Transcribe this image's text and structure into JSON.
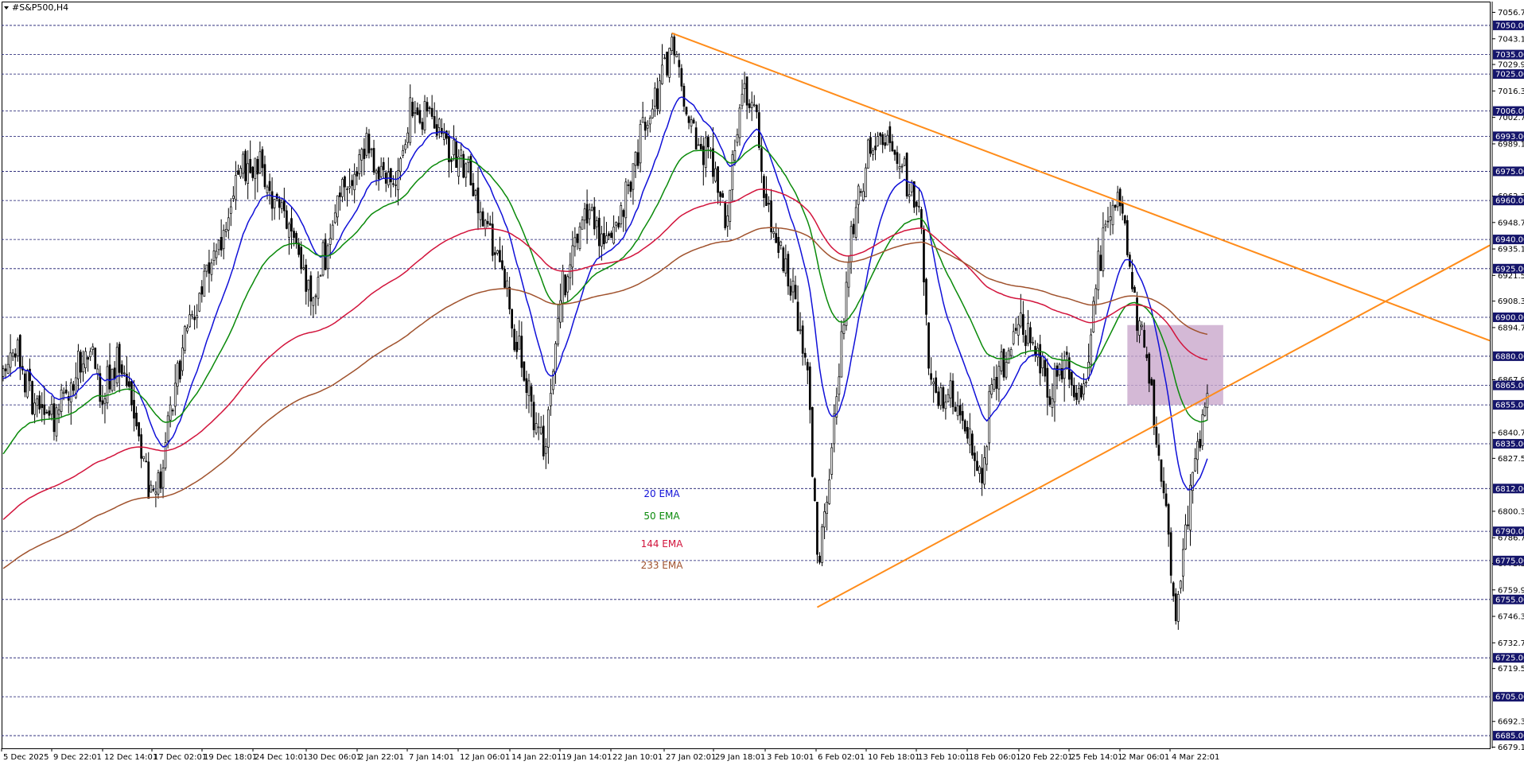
{
  "window": {
    "title": "#S&P500,H4"
  },
  "chart_data": {
    "type": "candlestick",
    "symbol": "#S&P500",
    "timeframe": "H4",
    "title": "#S&P500,H4",
    "ylim": [
      6679.11,
      7056.71
    ],
    "y_ticks": [
      "7056.71",
      "7043.11",
      "7029.91",
      "7016.31",
      "7002.71",
      "6989.11",
      "6962.31",
      "6948.71",
      "6935.11",
      "6921.51",
      "6908.31",
      "6894.71",
      "6867.91",
      "6840.71",
      "6827.51",
      "6800.31",
      "6786.71",
      "6773.51",
      "6759.91",
      "6746.31",
      "6732.71",
      "6719.51",
      "6692.31",
      "6679.11"
    ],
    "y_tick_values": [
      7056.71,
      7043.11,
      7029.91,
      7016.31,
      7002.71,
      6989.11,
      6962.31,
      6948.71,
      6935.11,
      6921.51,
      6908.31,
      6894.71,
      6867.91,
      6840.71,
      6827.51,
      6800.31,
      6786.71,
      6773.51,
      6759.91,
      6746.31,
      6732.71,
      6719.51,
      6692.31,
      6679.11
    ],
    "levels": [
      "7050.00",
      "7035.00",
      "7025.00",
      "7006.00",
      "6993.00",
      "6975.00",
      "6960.00",
      "6940.00",
      "6925.00",
      "6900.00",
      "6880.00",
      "6865.00",
      "6855.00",
      "6835.00",
      "6812.00",
      "6790.00",
      "6775.00",
      "6755.00",
      "6725.00",
      "6705.00",
      "6685.00"
    ],
    "level_values": [
      7050,
      7035,
      7025,
      7006,
      6993,
      6975,
      6960,
      6940,
      6925,
      6900,
      6880,
      6865,
      6855,
      6835,
      6812,
      6790,
      6775,
      6755,
      6725,
      6705,
      6685
    ],
    "x_labels": [
      "5 Dec 2025",
      "9 Dec 22:01",
      "12 Dec 14:01",
      "17 Dec 02:01",
      "19 Dec 18:01",
      "24 Dec 10:01",
      "30 Dec 06:01",
      "2 Jan 22:01",
      "7 Jan 14:01",
      "12 Jan 06:01",
      "14 Jan 22:01",
      "19 Jan 14:01",
      "22 Jan 10:01",
      "27 Jan 02:01",
      "29 Jan 18:01",
      "3 Feb 10:01",
      "6 Feb 02:01",
      "10 Feb 18:01",
      "13 Feb 10:01",
      "18 Feb 06:01",
      "20 Feb 22:01",
      "25 Feb 14:01",
      "2 Mar 06:01",
      "4 Mar 22:01"
    ],
    "legend": [
      {
        "label": "20 EMA",
        "color": "#1010d8"
      },
      {
        "label": "50 EMA",
        "color": "#0a8a0a"
      },
      {
        "label": "144 EMA",
        "color": "#d2143c"
      },
      {
        "label": "233 EMA",
        "color": "#a0522d"
      }
    ],
    "close_anchors": [
      [
        0,
        6870
      ],
      [
        6,
        6882
      ],
      [
        12,
        6860
      ],
      [
        20,
        6846
      ],
      [
        28,
        6868
      ],
      [
        36,
        6888
      ],
      [
        40,
        6858
      ],
      [
        46,
        6878
      ],
      [
        54,
        6848
      ],
      [
        60,
        6818
      ],
      [
        64,
        6810
      ],
      [
        70,
        6862
      ],
      [
        76,
        6895
      ],
      [
        82,
        6915
      ],
      [
        88,
        6935
      ],
      [
        94,
        6962
      ],
      [
        100,
        6975
      ],
      [
        104,
        6985
      ],
      [
        110,
        6965
      ],
      [
        118,
        6948
      ],
      [
        124,
        6928
      ],
      [
        128,
        6912
      ],
      [
        136,
        6948
      ],
      [
        142,
        6968
      ],
      [
        150,
        6992
      ],
      [
        155,
        6975
      ],
      [
        160,
        6968
      ],
      [
        168,
        7002
      ],
      [
        174,
        7005
      ],
      [
        180,
        6998
      ],
      [
        186,
        6985
      ],
      [
        192,
        6972
      ],
      [
        200,
        6948
      ],
      [
        206,
        6920
      ],
      [
        212,
        6888
      ],
      [
        218,
        6848
      ],
      [
        224,
        6838
      ],
      [
        230,
        6910
      ],
      [
        236,
        6940
      ],
      [
        242,
        6955
      ],
      [
        248,
        6935
      ],
      [
        256,
        6955
      ],
      [
        264,
        6995
      ],
      [
        270,
        7018
      ],
      [
        276,
        7040
      ],
      [
        280,
        7020
      ],
      [
        286,
        6985
      ],
      [
        292,
        6980
      ],
      [
        298,
        6950
      ],
      [
        304,
        7008
      ],
      [
        310,
        7018
      ],
      [
        314,
        6965
      ],
      [
        320,
        6935
      ],
      [
        326,
        6915
      ],
      [
        332,
        6870
      ],
      [
        336,
        6780
      ],
      [
        340,
        6800
      ],
      [
        344,
        6860
      ],
      [
        350,
        6950
      ],
      [
        358,
        6985
      ],
      [
        364,
        6995
      ],
      [
        372,
        6972
      ],
      [
        378,
        6958
      ],
      [
        382,
        6875
      ],
      [
        386,
        6858
      ],
      [
        392,
        6862
      ],
      [
        398,
        6838
      ],
      [
        404,
        6815
      ],
      [
        408,
        6865
      ],
      [
        414,
        6880
      ],
      [
        420,
        6895
      ],
      [
        426,
        6885
      ],
      [
        432,
        6865
      ],
      [
        438,
        6875
      ],
      [
        444,
        6855
      ],
      [
        448,
        6880
      ],
      [
        454,
        6945
      ],
      [
        460,
        6960
      ],
      [
        464,
        6930
      ],
      [
        468,
        6905
      ],
      [
        472,
        6880
      ],
      [
        476,
        6835
      ],
      [
        480,
        6800
      ],
      [
        484,
        6745
      ],
      [
        486,
        6770
      ],
      [
        490,
        6810
      ],
      [
        494,
        6840
      ],
      [
        497,
        6864
      ]
    ],
    "trendlines": [
      {
        "name": "upper-trendline",
        "color": "#ff8c1a",
        "from": {
          "date": "27 Jan 2026",
          "price": 7046
        },
        "to": {
          "date": "right edge",
          "price": 6888
        }
      },
      {
        "name": "lower-trendline",
        "color": "#ff8c1a",
        "from": {
          "date": "6 Feb 2026",
          "price": 6751
        },
        "to": {
          "date": "right edge",
          "price": 6937
        }
      }
    ],
    "zone": {
      "color": "#c9a8cc",
      "price_high": 6896,
      "price_low": 6855
    }
  }
}
